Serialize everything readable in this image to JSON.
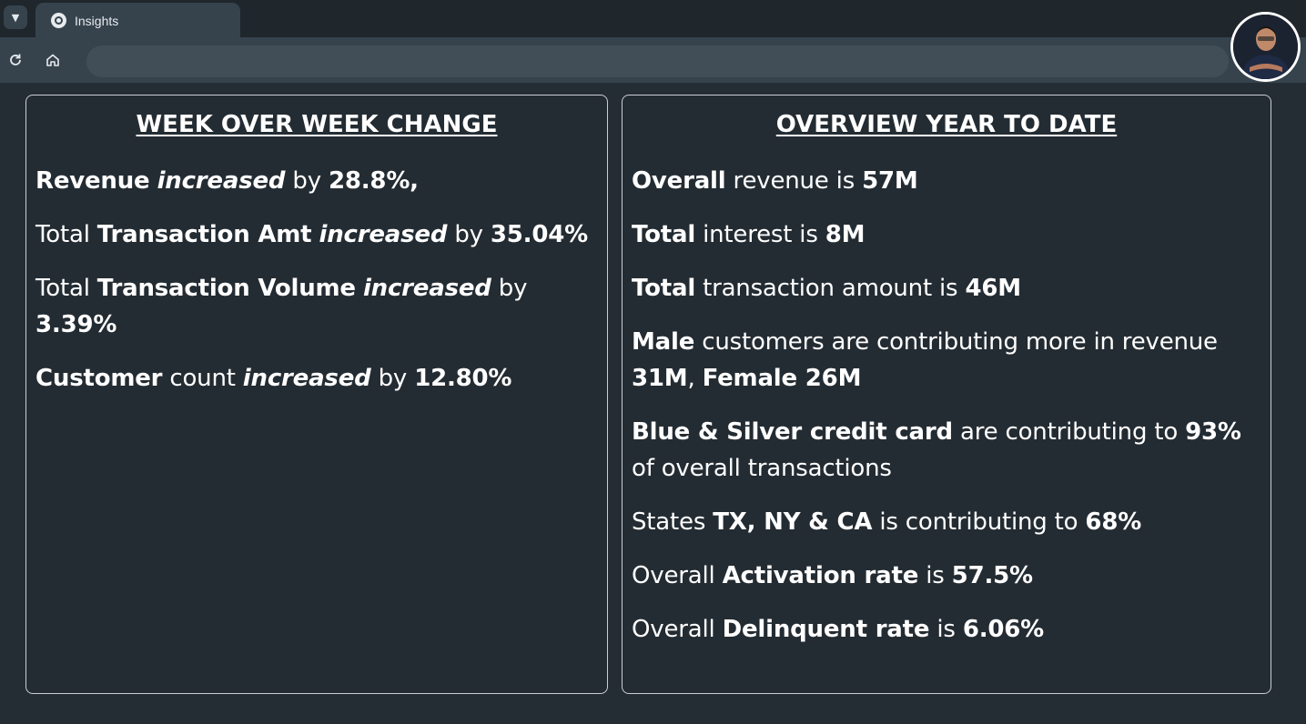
{
  "browser": {
    "tab_title": "Insights",
    "dropdown_icon": "chevron-down-icon",
    "reload_icon": "reload-icon",
    "home_icon": "home-icon",
    "omnibox_value": ""
  },
  "left_panel": {
    "title": "WEEK OVER WEEK CHANGE",
    "items": [
      {
        "parts": [
          [
            "b",
            "Revenue"
          ],
          [
            "t",
            " "
          ],
          [
            "bi",
            "increased"
          ],
          [
            "t",
            " by "
          ],
          [
            "b",
            "28.8%,"
          ]
        ]
      },
      {
        "parts": [
          [
            "t",
            "Total "
          ],
          [
            "b",
            "Transaction Amt"
          ],
          [
            "t",
            " "
          ],
          [
            "bi",
            "increased"
          ],
          [
            "t",
            " by "
          ],
          [
            "b",
            "35.04%"
          ]
        ]
      },
      {
        "parts": [
          [
            "t",
            "Total "
          ],
          [
            "b",
            "Transaction Volume"
          ],
          [
            "t",
            " "
          ],
          [
            "bi",
            "increased"
          ],
          [
            "t",
            " by "
          ],
          [
            "b",
            "3.39%"
          ]
        ]
      },
      {
        "parts": [
          [
            "b",
            "Customer"
          ],
          [
            "t",
            " count "
          ],
          [
            "bi",
            "increased"
          ],
          [
            "t",
            " by "
          ],
          [
            "b",
            "12.80%"
          ]
        ]
      }
    ]
  },
  "right_panel": {
    "title": "OVERVIEW YEAR TO DATE",
    "items": [
      {
        "parts": [
          [
            "b",
            "Overall"
          ],
          [
            "t",
            " revenue is "
          ],
          [
            "b",
            "57M"
          ]
        ]
      },
      {
        "parts": [
          [
            "b",
            "Total"
          ],
          [
            "t",
            " interest is "
          ],
          [
            "b",
            "8M"
          ]
        ]
      },
      {
        "parts": [
          [
            "b",
            "Total"
          ],
          [
            "t",
            " transaction amount is "
          ],
          [
            "b",
            "46M"
          ]
        ]
      },
      {
        "parts": [
          [
            "b",
            "Male"
          ],
          [
            "t",
            " customers are contributing more in revenue "
          ],
          [
            "b",
            "31M"
          ],
          [
            "t",
            ", "
          ],
          [
            "b",
            "Female 26M"
          ]
        ]
      },
      {
        "parts": [
          [
            "b",
            "Blue & Silver credit card"
          ],
          [
            "t",
            " are contributing to "
          ],
          [
            "b",
            "93%"
          ],
          [
            "t",
            " of overall transactions"
          ]
        ]
      },
      {
        "parts": [
          [
            "t",
            "States "
          ],
          [
            "b",
            "TX, NY & CA"
          ],
          [
            "t",
            " is contributing to "
          ],
          [
            "b",
            "68%"
          ]
        ]
      },
      {
        "parts": [
          [
            "t",
            "Overall "
          ],
          [
            "b",
            "Activation rate"
          ],
          [
            "t",
            " is "
          ],
          [
            "b",
            "57.5%"
          ]
        ]
      },
      {
        "parts": [
          [
            "t",
            "Overall "
          ],
          [
            "b",
            "Delinquent rate"
          ],
          [
            "t",
            " is "
          ],
          [
            "b",
            "6.06%"
          ]
        ]
      }
    ]
  }
}
